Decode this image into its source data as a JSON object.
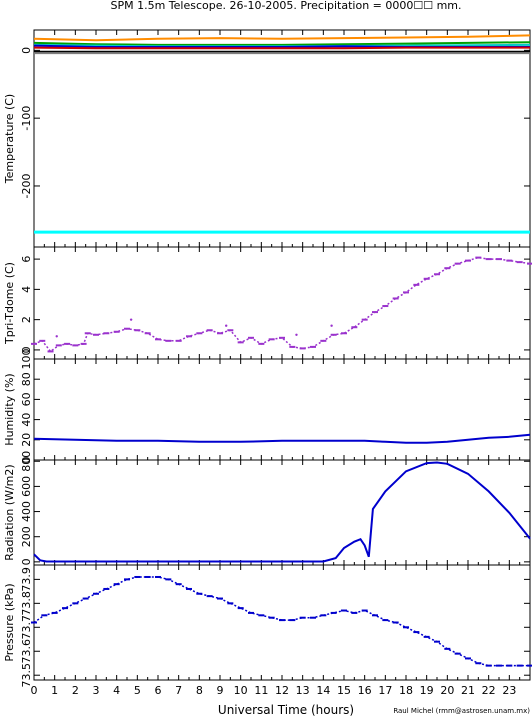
{
  "header": {
    "title": "SPM 1.5m Telescope. 26-10-2005. Precipitation = 0000☐☐ mm."
  },
  "footer": {
    "credit": "Raul Michel (rmm@astrosen.unam.mx)"
  },
  "chart_data": [
    {
      "id": "temperature",
      "type": "line",
      "ylabel": "Temperature (C)",
      "ylim": [
        -290,
        30
      ],
      "yticks": [
        0,
        -100,
        -200
      ],
      "colors": [
        "#ff8c00",
        "#00a000",
        "#00c8c8",
        "#0000cd",
        "#cc0000",
        "#000000",
        "#7f7f7f",
        "#00ffff"
      ],
      "series": [
        {
          "color": "#ff8c00",
          "x": [
            0,
            3,
            6,
            9,
            12,
            15,
            18,
            21,
            24
          ],
          "y": [
            17,
            15,
            17,
            18,
            17,
            18,
            19,
            20,
            22
          ]
        },
        {
          "color": "#00a000",
          "x": [
            0,
            3,
            6,
            9,
            12,
            15,
            18,
            21,
            24
          ],
          "y": [
            11,
            9,
            8,
            8,
            8,
            9,
            10,
            11,
            12
          ]
        },
        {
          "color": "#00c8c8",
          "x": [
            0,
            6,
            12,
            18,
            24
          ],
          "y": [
            8,
            6,
            6,
            7,
            8
          ]
        },
        {
          "color": "#0000cd",
          "x": [
            0,
            3,
            6,
            9,
            12,
            15,
            18,
            21,
            24
          ],
          "y": [
            7,
            5,
            5,
            5,
            5,
            6,
            5,
            5,
            5
          ]
        },
        {
          "color": "#cc0000",
          "x": [
            0,
            3,
            6,
            9,
            12,
            15,
            18,
            21,
            24
          ],
          "y": [
            4,
            3,
            3,
            3,
            3,
            3,
            4,
            4,
            4
          ]
        },
        {
          "color": "#000000",
          "x": [
            0,
            24
          ],
          "y": [
            -2,
            -2
          ]
        },
        {
          "color": "#7f7f7f",
          "x": [
            0,
            24
          ],
          "y": [
            -4,
            -4
          ]
        },
        {
          "color": "#00ffff",
          "x": [
            0,
            24
          ],
          "y": [
            -268,
            -268
          ]
        }
      ]
    },
    {
      "id": "tdiff",
      "type": "scatter",
      "ylabel": "Tpri-Tdome (C)",
      "ylim": [
        -0.6,
        6.8
      ],
      "yticks": [
        0,
        2,
        4,
        6
      ],
      "color": "#9a32cd",
      "x": [
        0,
        0.4,
        0.8,
        1.2,
        1.6,
        2.0,
        2.4,
        2.6,
        3.0,
        3.5,
        4.0,
        4.5,
        5.0,
        5.5,
        6.0,
        6.5,
        7.0,
        7.5,
        8.0,
        8.5,
        9.0,
        9.5,
        10.0,
        10.5,
        11.0,
        11.5,
        12.0,
        12.5,
        13.0,
        13.5,
        14.0,
        14.5,
        15.0,
        15.5,
        16.0,
        16.5,
        17.0,
        17.5,
        18.0,
        18.5,
        19.0,
        19.5,
        20.0,
        20.5,
        21.0,
        21.5,
        22.0,
        22.5,
        23.0,
        23.5,
        24.0
      ],
      "y": [
        0.4,
        0.6,
        -0.1,
        0.3,
        0.4,
        0.3,
        0.4,
        1.1,
        1.0,
        1.1,
        1.2,
        1.4,
        1.3,
        1.1,
        0.7,
        0.6,
        0.6,
        0.9,
        1.1,
        1.3,
        1.1,
        1.3,
        0.5,
        0.8,
        0.4,
        0.7,
        0.8,
        0.2,
        0.1,
        0.2,
        0.6,
        1.0,
        1.1,
        1.5,
        2.0,
        2.5,
        2.9,
        3.4,
        3.8,
        4.3,
        4.7,
        5.0,
        5.4,
        5.7,
        5.9,
        6.1,
        6.0,
        6.0,
        5.9,
        5.8,
        5.7
      ],
      "outliers": {
        "x": [
          1.1,
          4.7,
          9.3,
          12.7,
          14.4
        ],
        "y": [
          0.9,
          2.0,
          1.6,
          1.0,
          1.6
        ]
      }
    },
    {
      "id": "humidity",
      "type": "line",
      "ylabel": "Humidity (%)",
      "ylim": [
        0,
        100
      ],
      "yticks": [
        0,
        20,
        40,
        60,
        80,
        100
      ],
      "color": "#0000cd",
      "x": [
        0,
        2,
        4,
        6,
        8,
        10,
        12,
        14,
        16,
        17,
        18,
        19,
        20,
        21,
        22,
        23,
        24
      ],
      "y": [
        21,
        20,
        19,
        19,
        18,
        18,
        19,
        19,
        19,
        18,
        17,
        17,
        18,
        20,
        22,
        23,
        25
      ]
    },
    {
      "id": "radiation",
      "type": "line",
      "ylabel": "Radiation (W/m2)",
      "ylim": [
        -25,
        810
      ],
      "yticks": [
        0,
        200,
        400,
        600,
        800
      ],
      "color": "#0000cd",
      "x": [
        0,
        0.3,
        0.6,
        14.0,
        14.6,
        15.0,
        15.5,
        15.8,
        16.0,
        16.2,
        16.4,
        17,
        18,
        19,
        19.5,
        20,
        21,
        22,
        23,
        24
      ],
      "y": [
        60,
        12,
        3,
        3,
        30,
        110,
        160,
        180,
        130,
        40,
        420,
        560,
        720,
        785,
        790,
        780,
        700,
        560,
        390,
        185
      ]
    },
    {
      "id": "pressure",
      "type": "scatter",
      "ylabel": "Pressure (kPa)",
      "ylim": [
        73.48,
        73.96
      ],
      "yticks": [
        73.5,
        73.6,
        73.7,
        73.8,
        73.9
      ],
      "yticklabels": [
        "73.5",
        "73.6",
        "73.7",
        "73.8",
        "73.9"
      ],
      "color": "#0000cd",
      "x": [
        0,
        0.5,
        1.0,
        1.5,
        2.0,
        2.5,
        3.0,
        3.5,
        4.0,
        4.5,
        5.0,
        5.5,
        6.0,
        6.5,
        7.0,
        7.5,
        8.0,
        8.5,
        9.0,
        9.5,
        10.0,
        10.5,
        11.0,
        11.5,
        12.0,
        12.5,
        13.0,
        13.5,
        14.0,
        14.5,
        15.0,
        15.5,
        16.0,
        16.5,
        17.0,
        17.5,
        18.0,
        18.5,
        19.0,
        19.5,
        20.0,
        20.5,
        21.0,
        21.5,
        22.0,
        22.5,
        23.0,
        23.5,
        24.0
      ],
      "y": [
        73.72,
        73.75,
        73.76,
        73.78,
        73.8,
        73.82,
        73.84,
        73.86,
        73.88,
        73.9,
        73.91,
        73.91,
        73.91,
        73.9,
        73.88,
        73.86,
        73.84,
        73.83,
        73.82,
        73.8,
        73.78,
        73.76,
        73.75,
        73.74,
        73.73,
        73.73,
        73.74,
        73.74,
        73.75,
        73.76,
        73.77,
        73.76,
        73.77,
        73.75,
        73.73,
        73.72,
        73.7,
        73.68,
        73.66,
        73.64,
        73.61,
        73.59,
        73.57,
        73.55,
        73.54,
        73.54,
        73.54,
        73.54,
        73.54
      ]
    }
  ],
  "x_axis": {
    "label": "Universal Time (hours)",
    "ticks": [
      0,
      1,
      2,
      3,
      4,
      5,
      6,
      7,
      8,
      9,
      10,
      11,
      12,
      13,
      14,
      15,
      16,
      17,
      18,
      19,
      20,
      21,
      22,
      23
    ],
    "range": [
      0,
      24
    ]
  }
}
